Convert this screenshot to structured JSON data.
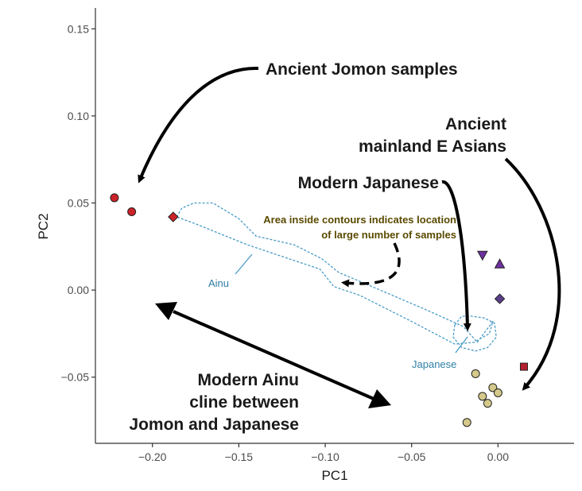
{
  "chart_data": {
    "type": "scatter",
    "title": "",
    "xlabel": "PC1",
    "ylabel": "PC2",
    "xlim": [
      -0.233,
      0.044
    ],
    "ylim": [
      -0.088,
      0.162
    ],
    "x_ticks": [
      -0.2,
      -0.15,
      -0.1,
      -0.05,
      0.0
    ],
    "x_tick_labels": [
      "−0.20",
      "−0.15",
      "−0.10",
      "−0.05",
      "0.00"
    ],
    "y_ticks": [
      -0.05,
      0.0,
      0.05,
      0.1,
      0.15
    ],
    "y_tick_labels": [
      "−0.05",
      "0.00",
      "0.05",
      "0.10",
      "0.15"
    ],
    "grid": false,
    "series": [
      {
        "marker": "circle",
        "color": "#cc2229",
        "points": [
          [
            -0.222,
            0.053
          ],
          [
            -0.212,
            0.045
          ]
        ]
      },
      {
        "marker": "diamond",
        "color": "#cc2229",
        "points": [
          [
            -0.188,
            0.042
          ]
        ]
      },
      {
        "marker": "triangle-down",
        "color": "#7030a0",
        "points": [
          [
            -0.009,
            0.02
          ]
        ]
      },
      {
        "marker": "triangle-up",
        "color": "#7030a0",
        "points": [
          [
            0.001,
            0.015
          ]
        ]
      },
      {
        "marker": "diamond",
        "color": "#5a3d8a",
        "points": [
          [
            0.001,
            -0.005
          ]
        ]
      },
      {
        "marker": "square",
        "color": "#b5202e",
        "points": [
          [
            0.015,
            -0.044
          ]
        ]
      },
      {
        "marker": "circle",
        "color": "#d4c98a",
        "points": [
          [
            -0.013,
            -0.048
          ],
          [
            -0.003,
            -0.056
          ],
          [
            -0.009,
            -0.061
          ],
          [
            0.0,
            -0.059
          ],
          [
            -0.006,
            -0.065
          ],
          [
            -0.018,
            -0.076
          ]
        ]
      }
    ],
    "contours": [
      {
        "label": "Ainu",
        "color": "#4a9cc7",
        "path": [
          [
            -0.186,
            0.042
          ],
          [
            -0.183,
            0.047
          ],
          [
            -0.176,
            0.05
          ],
          [
            -0.165,
            0.05
          ],
          [
            -0.15,
            0.041
          ],
          [
            -0.14,
            0.031
          ],
          [
            -0.118,
            0.026
          ],
          [
            -0.102,
            0.018
          ],
          [
            -0.092,
            0.01
          ],
          [
            -0.08,
            0.005
          ],
          [
            -0.04,
            -0.012
          ],
          [
            -0.02,
            -0.021
          ],
          [
            -0.012,
            -0.03
          ],
          [
            -0.003,
            -0.018
          ],
          [
            -0.005,
            -0.025
          ],
          [
            -0.014,
            -0.03
          ],
          [
            -0.025,
            -0.031
          ],
          [
            -0.05,
            -0.018
          ],
          [
            -0.08,
            -0.003
          ],
          [
            -0.095,
            0.002
          ],
          [
            -0.103,
            0.012
          ],
          [
            -0.145,
            0.026
          ],
          [
            -0.175,
            0.038
          ],
          [
            -0.186,
            0.042
          ]
        ]
      },
      {
        "label": "Japanese",
        "color": "#4a9cc7",
        "path": [
          [
            -0.025,
            -0.02
          ],
          [
            -0.021,
            -0.015
          ],
          [
            -0.015,
            -0.015
          ],
          [
            -0.008,
            -0.016
          ],
          [
            -0.002,
            -0.019
          ],
          [
            -0.001,
            -0.027
          ],
          [
            -0.006,
            -0.033
          ],
          [
            -0.013,
            -0.035
          ],
          [
            -0.021,
            -0.033
          ],
          [
            -0.026,
            -0.027
          ],
          [
            -0.025,
            -0.02
          ]
        ]
      }
    ],
    "annotations": [
      {
        "text_lines": [
          "Ancient Jomon samples"
        ]
      },
      {
        "text_lines": [
          "Ancient",
          "mainland E Asians"
        ]
      },
      {
        "text_lines": [
          "Modern Japanese"
        ]
      },
      {
        "text_lines": [
          "Area inside contours indicates location",
          "of large number of samples"
        ]
      },
      {
        "text_lines": [
          "Modern Ainu",
          "cline between",
          "Jomon and Japanese"
        ]
      }
    ]
  }
}
